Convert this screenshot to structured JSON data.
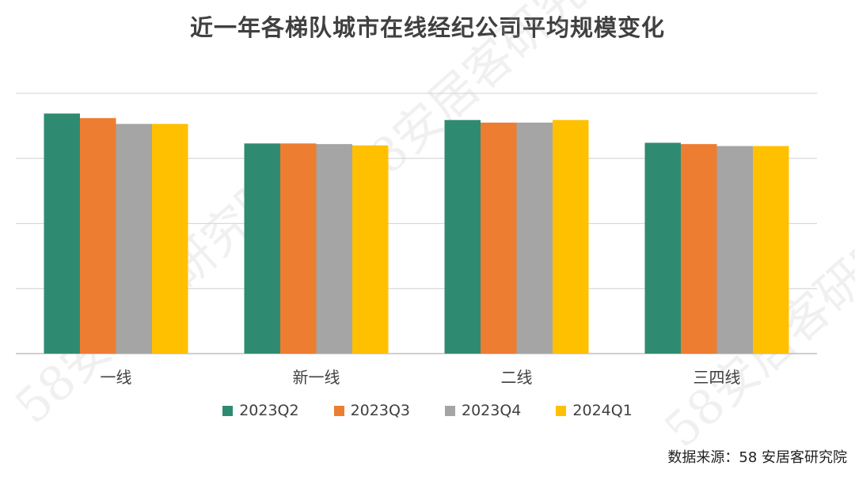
{
  "chart_data": {
    "type": "bar",
    "title": "近一年各梯队城市在线经纪公司平均规模变化",
    "categories": [
      "一线",
      "新一线",
      "二线",
      "三四线"
    ],
    "series": [
      {
        "name": "2023Q2",
        "color": "#2e8b72",
        "values": [
          3.69,
          3.23,
          3.59,
          3.24
        ]
      },
      {
        "name": "2023Q3",
        "color": "#ed7d31",
        "values": [
          3.62,
          3.23,
          3.55,
          3.22
        ]
      },
      {
        "name": "2023Q4",
        "color": "#a5a5a5",
        "values": [
          3.53,
          3.22,
          3.55,
          3.19
        ]
      },
      {
        "name": "2024Q1",
        "color": "#ffc000",
        "values": [
          3.53,
          3.2,
          3.59,
          3.19
        ]
      }
    ],
    "ylim": [
      0,
      4
    ],
    "grid": true,
    "legend_position": "bottom",
    "xlabel": "",
    "ylabel": ""
  },
  "watermark": "58安居客研究院",
  "source": "数据来源：58 安居客研究院"
}
